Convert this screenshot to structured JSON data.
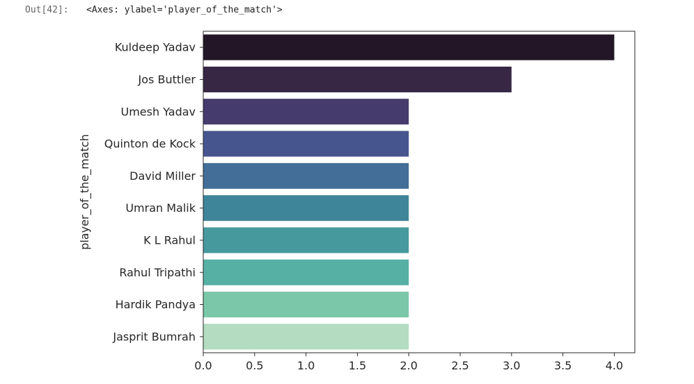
{
  "cell": {
    "prompt": "Out[42]:",
    "text": "<Axes: ylabel='player_of_the_match'>"
  },
  "chart_data": {
    "type": "bar",
    "orientation": "horizontal",
    "title": "",
    "xlabel": "",
    "ylabel": "player_of_the_match",
    "categories": [
      "Kuldeep Yadav",
      "Jos Buttler",
      "Umesh Yadav",
      "Quinton de Kock",
      "David Miller",
      "Umran Malik",
      "K L Rahul",
      "Rahul Tripathi",
      "Hardik Pandya",
      "Jasprit Bumrah"
    ],
    "values": [
      4,
      3,
      2,
      2,
      2,
      2,
      2,
      2,
      2,
      2
    ],
    "colors": [
      "#231626",
      "#372744",
      "#453B6C",
      "#47558E",
      "#436E97",
      "#3F8599",
      "#46999D",
      "#56B0A3",
      "#7BC7A9",
      "#B3DCC0"
    ],
    "xticks": [
      "0.0",
      "0.5",
      "1.0",
      "1.5",
      "2.0",
      "2.5",
      "3.0",
      "3.5",
      "4.0"
    ],
    "xlim": [
      0,
      4.2
    ],
    "grid": false,
    "legend": false
  }
}
